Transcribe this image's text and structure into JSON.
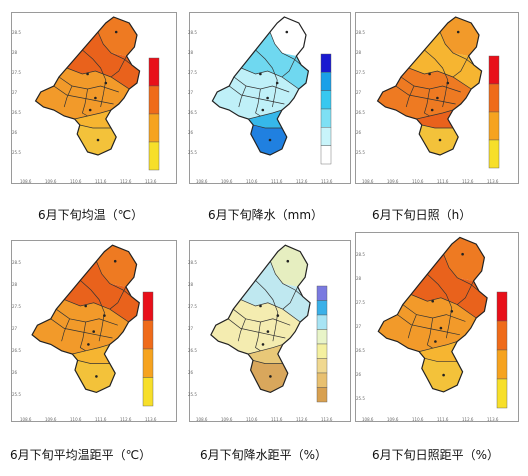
{
  "figure": {
    "panels": [
      {
        "id": "temp",
        "caption": "6月下旬均温（℃）",
        "legend_colors": [
          "#e8101a",
          "#ef6b1a",
          "#f6a31f",
          "#f7df2a"
        ],
        "map_colors": [
          "#ee7a22",
          "#f29a2a",
          "#e9621c",
          "#f6b531",
          "#f3c23a"
        ],
        "y_ticks": [
          "28.5",
          "28",
          "27.5",
          "27",
          "26.5",
          "26",
          "25.5"
        ],
        "x_ticks": [
          "108.6",
          "109.6",
          "110.6",
          "111.6",
          "112.6",
          "113.6"
        ],
        "legend_ticks": [
          "",
          "",
          "",
          "",
          ""
        ]
      },
      {
        "id": "precip",
        "caption": "6月下旬降水（mm）",
        "legend_colors": [
          "#1a1ad0",
          "#1aa0e8",
          "#38c8f0",
          "#7ee0f4",
          "#c8f4fa",
          "#ffffff"
        ],
        "map_colors": [
          "#ffffff",
          "#bff0f8",
          "#6fd8f0",
          "#36b8ea",
          "#2080e0"
        ],
        "y_ticks": [
          "28.5",
          "28",
          "27.5",
          "27",
          "26.5",
          "26",
          "25.5"
        ],
        "x_ticks": [
          "108.6",
          "109.6",
          "110.6",
          "111.6",
          "112.6",
          "113.6"
        ],
        "legend_ticks": [
          "",
          "",
          "",
          "",
          "",
          ""
        ]
      },
      {
        "id": "sunshine",
        "caption": "6月下旬日照（h）",
        "legend_colors": [
          "#e8101a",
          "#ef6b1a",
          "#f6a31f",
          "#f7df2a"
        ],
        "map_colors": [
          "#f29a2a",
          "#ee7a22",
          "#f6b531",
          "#e9621c",
          "#f3c23a"
        ],
        "y_ticks": [
          "28.5",
          "28",
          "27.5",
          "27",
          "26.5",
          "26",
          "25.5"
        ],
        "x_ticks": [
          "108.6",
          "109.6",
          "110.6",
          "111.6",
          "112.6",
          "113.6"
        ],
        "legend_ticks": [
          "",
          "",
          "",
          "",
          ""
        ]
      },
      {
        "id": "temp_anom",
        "caption": "6月下旬平均温距平（℃）",
        "legend_colors": [
          "#e8101a",
          "#ef6b1a",
          "#f6a31f",
          "#f7df2a"
        ],
        "map_colors": [
          "#ee7a22",
          "#f29a2a",
          "#e9621c",
          "#f6b531",
          "#f3c23a"
        ],
        "y_ticks": [
          "28.5",
          "28",
          "27.5",
          "27",
          "26.5",
          "26",
          "25.5"
        ],
        "x_ticks": [
          "108.6",
          "109.6",
          "110.6",
          "111.6",
          "112.6",
          "113.6"
        ],
        "legend_ticks": [
          "",
          "",
          "",
          "",
          ""
        ]
      },
      {
        "id": "precip_anom",
        "caption": "6月下旬降水距平（%）",
        "legend_colors": [
          "#7a7ae0",
          "#3ab0e8",
          "#a8e4f4",
          "#e8f4c8",
          "#f4f0a0",
          "#f0d890",
          "#e8c070",
          "#d8a050"
        ],
        "map_colors": [
          "#e6eec0",
          "#f4ecb0",
          "#bfe8f0",
          "#e8c878",
          "#d9a75c"
        ],
        "y_ticks": [
          "28.5",
          "28",
          "27.5",
          "27",
          "26.5",
          "26",
          "25.5"
        ],
        "x_ticks": [
          "108.6",
          "109.6",
          "110.6",
          "111.6",
          "112.6",
          "113.6"
        ],
        "legend_ticks": [
          "",
          "",
          "",
          "",
          "",
          "",
          "",
          ""
        ]
      },
      {
        "id": "sun_anom",
        "caption": "6月下旬日照距平（%）",
        "legend_colors": [
          "#e8101a",
          "#ef6b1a",
          "#f6a31f",
          "#f7df2a"
        ],
        "map_colors": [
          "#ee7a22",
          "#f29a2a",
          "#e9621c",
          "#f6b531",
          "#f3c23a"
        ],
        "y_ticks": [
          "28.5",
          "28",
          "27.5",
          "27",
          "26.5",
          "26",
          "25.5"
        ],
        "x_ticks": [
          "108.6",
          "109.6",
          "110.6",
          "111.6",
          "112.6",
          "113.6"
        ],
        "legend_ticks": [
          "",
          "",
          "",
          "",
          ""
        ]
      }
    ]
  }
}
